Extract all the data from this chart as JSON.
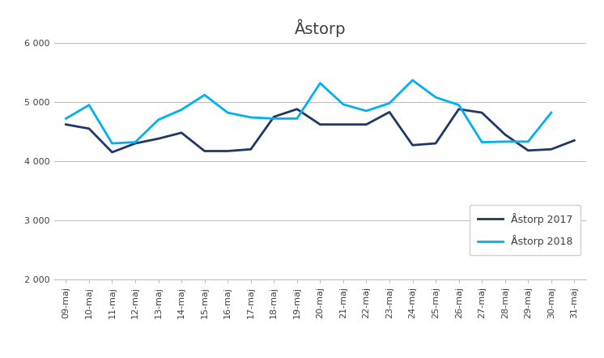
{
  "title": "Åstorp",
  "x_labels": [
    "09-maj",
    "10-maj",
    "11-maj",
    "12-maj",
    "13-maj",
    "14-maj",
    "15-maj",
    "16-maj",
    "17-maj",
    "18-maj",
    "19-maj",
    "20-maj",
    "21-maj",
    "22-maj",
    "23-maj",
    "24-maj",
    "25-maj",
    "26-maj",
    "27-maj",
    "28-maj",
    "29-maj",
    "30-maj",
    "31-maj"
  ],
  "y2017": [
    4620,
    4550,
    4150,
    4300,
    4380,
    4480,
    4170,
    4170,
    4200,
    4750,
    4880,
    4620,
    4620,
    4620,
    4830,
    4270,
    4300,
    4880,
    4820,
    4450,
    4180,
    4200,
    4350
  ],
  "y2018": [
    4720,
    4950,
    4300,
    4320,
    4700,
    4870,
    5120,
    4820,
    4740,
    4720,
    4720,
    5320,
    4960,
    4850,
    4980,
    5370,
    5080,
    4950,
    4320,
    4330,
    4330,
    4820,
    null
  ],
  "color_2017": "#1F3864",
  "color_2018": "#00B0F0",
  "legend_2017": "Åstorp 2017",
  "legend_2018": "Åstorp 2018",
  "ylim": [
    2000,
    6000
  ],
  "yticks": [
    2000,
    3000,
    4000,
    5000,
    6000
  ],
  "background_color": "#ffffff",
  "grid_color": "#bfbfbf",
  "title_fontsize": 14,
  "tick_fontsize": 8,
  "legend_fontsize": 9
}
